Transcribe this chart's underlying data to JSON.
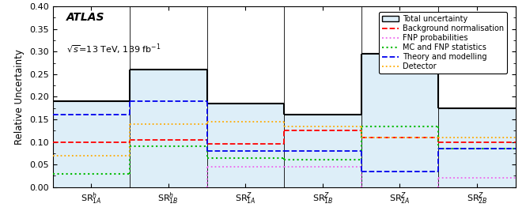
{
  "regions": [
    "SR$^{h}_{1A}$",
    "SR$^{h}_{1B}$",
    "SR$^{Z}_{1A}$",
    "SR$^{Z}_{1B}$",
    "SR$^{Z}_{2A}$",
    "SR$^{Z}_{2B}$"
  ],
  "total_uncertainty": [
    0.19,
    0.26,
    0.185,
    0.16,
    0.295,
    0.175
  ],
  "background_normalisation": [
    0.1,
    0.105,
    0.095,
    0.125,
    0.11,
    0.1
  ],
  "fnp_probabilities": [
    0.0,
    0.0,
    0.045,
    0.045,
    0.0,
    0.02
  ],
  "mc_fnp_statistics": [
    0.03,
    0.09,
    0.065,
    0.06,
    0.135,
    0.085
  ],
  "theory_modelling": [
    0.16,
    0.19,
    0.08,
    0.08,
    0.035,
    0.085
  ],
  "detector": [
    0.07,
    0.14,
    0.145,
    0.135,
    0.11,
    0.11
  ],
  "colors": {
    "total": "#000000",
    "background_normalisation": "#ff0000",
    "fnp_probabilities": "#ee66ee",
    "mc_fnp_statistics": "#00bb00",
    "theory_modelling": "#0000ee",
    "detector": "#ffaa00"
  },
  "fill_color": "#ddeef8",
  "ylim": [
    0,
    0.4
  ],
  "yticks": [
    0,
    0.05,
    0.1,
    0.15,
    0.2,
    0.25,
    0.3,
    0.35,
    0.4
  ],
  "ylabel": "Relative Uncertainty",
  "atlas_text": "ATLAS",
  "energy_text": "$\\sqrt{s}$=13 TeV, 139 fb$^{-1}$",
  "legend_labels": [
    "Total uncertainty",
    "Background normalisation",
    "FNP probabilities",
    "MC and FNP statistics",
    "Theory and modelling",
    "Detector"
  ]
}
